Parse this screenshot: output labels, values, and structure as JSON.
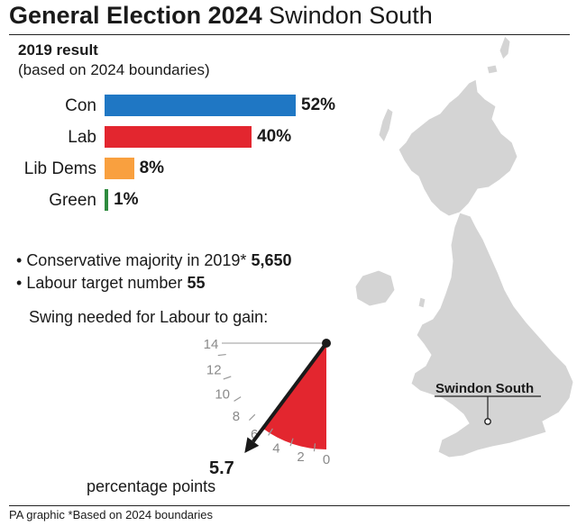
{
  "header": {
    "title_bold": "General Election 2024",
    "title_regular": "Swindon South"
  },
  "chart_data": [
    {
      "type": "bar",
      "title": "2019 result",
      "subtitle": "(based on 2024 boundaries)",
      "categories": [
        "Con",
        "Lab",
        "Lib Dems",
        "Green"
      ],
      "values": [
        52,
        40,
        8,
        1
      ],
      "value_labels": [
        "52%",
        "40%",
        "8%",
        "1%"
      ],
      "colors": [
        "#1f77c4",
        "#e3262f",
        "#f9a03f",
        "#2e8b3e"
      ],
      "ylim": [
        0,
        60
      ]
    },
    {
      "type": "gauge",
      "title": "Swing needed for Labour to gain:",
      "ticks": [
        0,
        2,
        4,
        6,
        8,
        10,
        12,
        14
      ],
      "tick_labels": [
        "0",
        "2",
        "4",
        "6",
        "8",
        "10",
        "12",
        "14"
      ],
      "value": 5.7,
      "value_label": "5.7",
      "unit_label": "percentage points",
      "range": [
        0,
        14
      ],
      "fill_color": "#e3262f"
    }
  ],
  "stats": {
    "majority_label": "Conservative majority in 2019*",
    "majority_value": "5,650",
    "target_label": "Labour target number",
    "target_value": "55"
  },
  "map": {
    "callout": "Swindon South"
  },
  "footer": {
    "text": "PA graphic *Based on 2024 boundaries"
  }
}
